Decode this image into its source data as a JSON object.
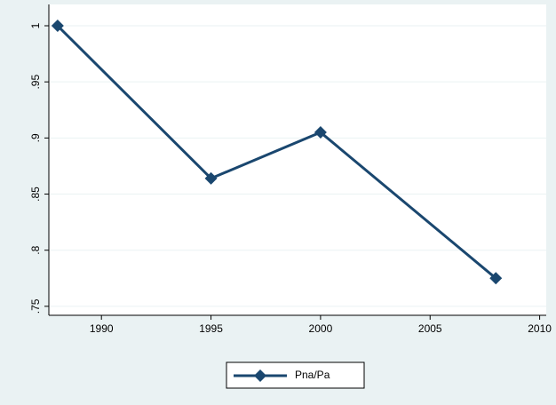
{
  "chart_data": {
    "type": "line",
    "x": [
      1988,
      1995,
      2000,
      2008
    ],
    "series": [
      {
        "name": "Pna/Pa",
        "color": "#1a476f",
        "values": [
          1,
          0.864,
          0.905,
          0.775
        ]
      }
    ],
    "xlim": [
      1987.6,
      2010.3
    ],
    "xticks": [
      1990,
      1995,
      2000,
      2005,
      2010
    ],
    "ylim": [
      0.742,
      1.019
    ],
    "yticks": [
      {
        "value": 0.75,
        "label": ".75"
      },
      {
        "value": 0.8,
        "label": ".8"
      },
      {
        "value": 0.85,
        "label": ".85"
      },
      {
        "value": 0.9,
        "label": ".9"
      },
      {
        "value": 0.95,
        "label": ".95"
      },
      1
    ],
    "grid": true
  }
}
